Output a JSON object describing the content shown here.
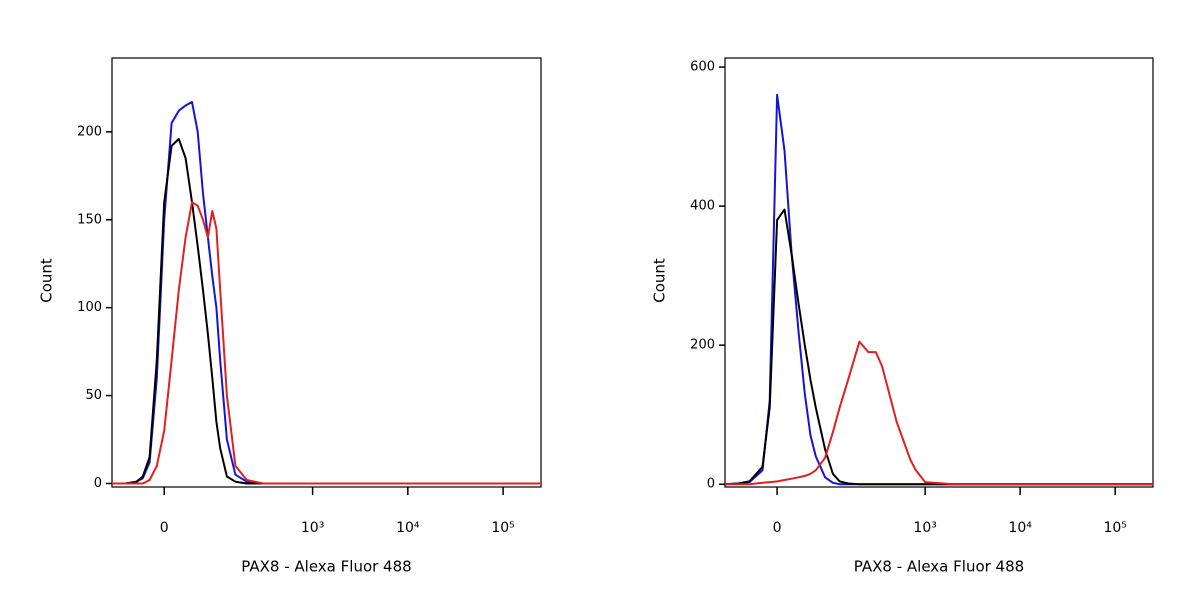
{
  "chart_data": [
    {
      "type": "line",
      "xscale": "asinh",
      "x_label": "PAX8 - Alexa Fluor 488",
      "y_label": "Count",
      "x": [
        -90,
        -60,
        -40,
        -30,
        -20,
        -10,
        0,
        10,
        20,
        30,
        40,
        50,
        60,
        70,
        80,
        90,
        100,
        120,
        150,
        200,
        300,
        1000,
        10000,
        250000
      ],
      "series": [
        {
          "color": "#1414d8",
          "values": [
            0,
            0,
            1,
            3,
            12,
            60,
            150,
            205,
            212,
            215,
            217,
            200,
            165,
            140,
            118,
            100,
            70,
            25,
            5,
            1,
            0,
            0,
            0,
            0
          ]
        },
        {
          "color": "#000000",
          "values": [
            0,
            0,
            1,
            4,
            15,
            70,
            160,
            192,
            196,
            185,
            160,
            135,
            110,
            85,
            60,
            35,
            20,
            4,
            1,
            0,
            0,
            0,
            0,
            0
          ]
        },
        {
          "color": "#e02020",
          "values": [
            0,
            0,
            0,
            0,
            2,
            10,
            30,
            70,
            110,
            140,
            160,
            158,
            150,
            140,
            155,
            145,
            110,
            50,
            10,
            2,
            0,
            0,
            0,
            0
          ]
        }
      ],
      "xlim": [
        -90,
        250000
      ],
      "xticks": [
        0,
        {
          "value": 1000,
          "label": "10³"
        },
        {
          "value": 10000,
          "label": "10⁴"
        },
        {
          "value": 100000,
          "label": "10⁵"
        }
      ],
      "ylim": [
        -2,
        242
      ],
      "yticks": [
        0,
        50,
        100,
        150,
        200
      ]
    },
    {
      "type": "line",
      "xscale": "asinh",
      "x_label": "PAX8 - Alexa Fluor 488",
      "y_label": "Count",
      "x": [
        -90,
        -60,
        -40,
        -20,
        -10,
        0,
        10,
        20,
        30,
        40,
        50,
        60,
        80,
        100,
        120,
        150,
        200,
        250,
        300,
        350,
        400,
        500,
        600,
        700,
        800,
        1000,
        2000,
        10000,
        250000
      ],
      "series": [
        {
          "color": "#1414d8",
          "values": [
            0,
            1,
            3,
            20,
            120,
            560,
            480,
            330,
            220,
            130,
            70,
            40,
            10,
            2,
            0,
            0,
            0,
            0,
            0,
            0,
            0,
            0,
            0,
            0,
            0,
            0,
            0,
            0,
            0
          ]
        },
        {
          "color": "#000000",
          "values": [
            0,
            1,
            4,
            25,
            110,
            380,
            395,
            330,
            260,
            200,
            150,
            110,
            50,
            15,
            4,
            1,
            0,
            0,
            0,
            0,
            0,
            0,
            0,
            0,
            0,
            0,
            0,
            0,
            0
          ]
        },
        {
          "color": "#e02020",
          "values": [
            0,
            0,
            0,
            2,
            3,
            4,
            6,
            8,
            10,
            12,
            15,
            20,
            38,
            75,
            110,
            150,
            205,
            190,
            190,
            170,
            140,
            90,
            60,
            35,
            20,
            3,
            0,
            0,
            0
          ]
        }
      ],
      "xlim": [
        -90,
        250000
      ],
      "xticks": [
        0,
        {
          "value": 1000,
          "label": "10³"
        },
        {
          "value": 10000,
          "label": "10⁴"
        },
        {
          "value": 100000,
          "label": "10⁵"
        }
      ],
      "ylim": [
        -4,
        613
      ],
      "yticks": [
        0,
        200,
        400,
        600
      ]
    }
  ]
}
